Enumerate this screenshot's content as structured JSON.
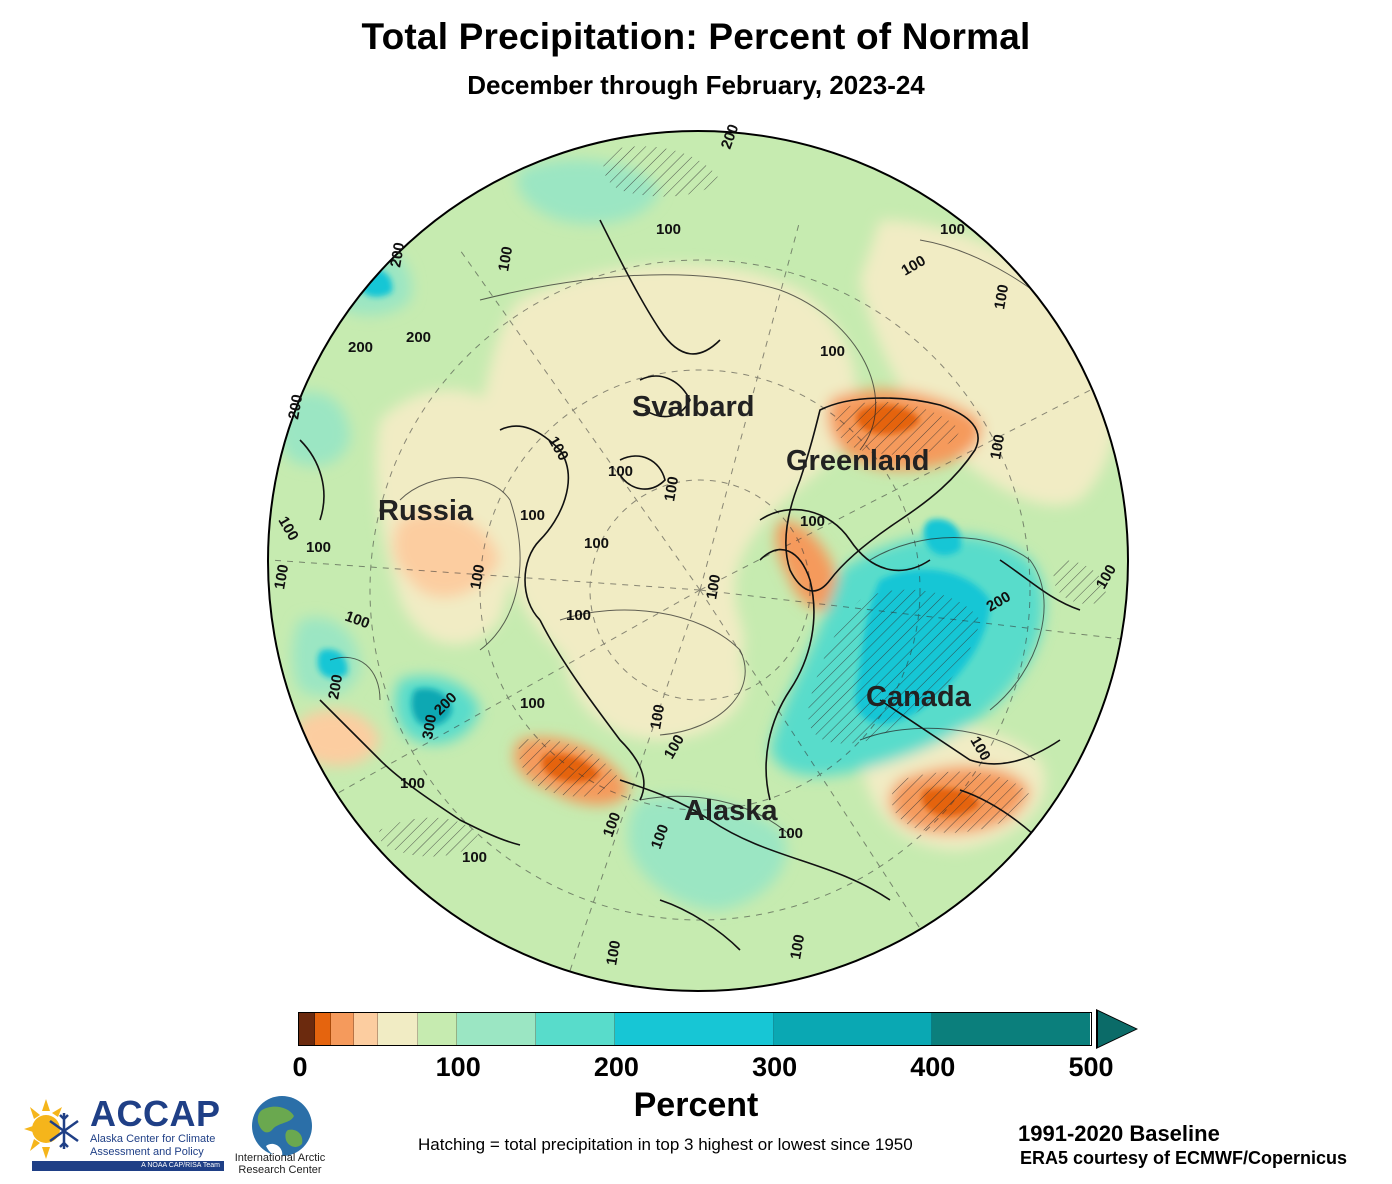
{
  "title": "Total Precipitation: Percent of Normal",
  "subtitle": "December through February, 2023-24",
  "regions": {
    "svalbard": "Svalbard",
    "greenland": "Greenland",
    "russia": "Russia",
    "canada": "Canada",
    "alaska": "Alaska"
  },
  "contour_labels": {
    "c100": "100",
    "c200": "200",
    "c300": "300"
  },
  "colorbar": {
    "ticks": [
      "0",
      "100",
      "200",
      "300",
      "400",
      "500"
    ],
    "unit_label": "Percent",
    "colors": [
      "#6b2a0e",
      "#b8470f",
      "#e5640e",
      "#f59a5c",
      "#fccda0",
      "#f1ecc4",
      "#c6ebb0",
      "#9be6c3",
      "#58dccb",
      "#17c6d5",
      "#0aa8b3",
      "#0b7f7c",
      "#0b6b68"
    ],
    "boundaries": [
      0,
      10,
      20,
      35,
      50,
      75,
      100,
      150,
      200,
      300,
      400,
      500
    ],
    "extend": "max"
  },
  "hatching_note": "Hatching = total precipitation in top 3 highest or lowest since 1950",
  "baseline": "1991-2020 Baseline",
  "credit": "ERA5 courtesy of ECMWF/Copernicus",
  "logos": {
    "accap_name": "ACCAP",
    "accap_line1": "Alaska Center for Climate",
    "accap_line2": "Assessment and Policy",
    "accap_tagline": "A NOAA CAP/RISA Team",
    "iarc_name": "International Arctic Research Center"
  }
}
